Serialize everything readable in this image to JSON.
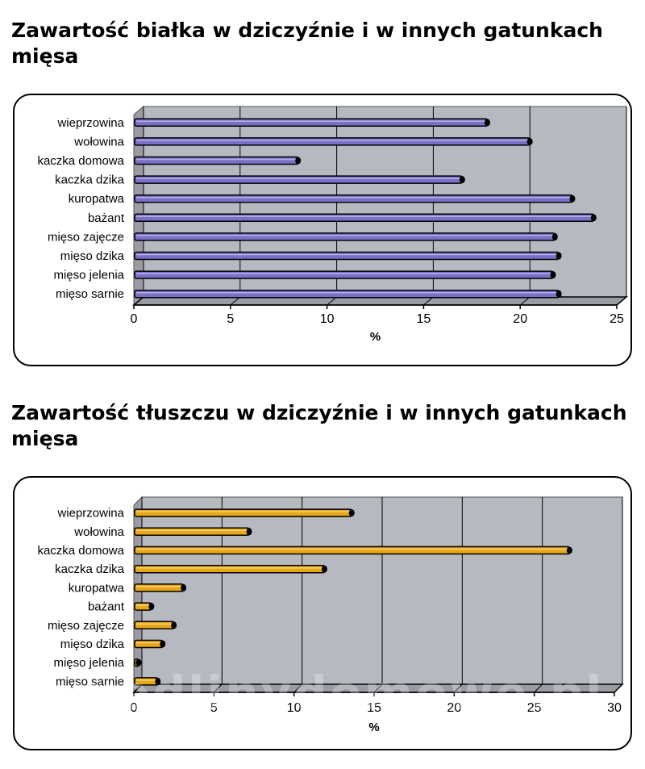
{
  "charts": [
    {
      "title": "Zawartość białka w dziczyźnie i w innych gatunkach mięsa"
    },
    {
      "title": "Zawartość tłuszczu w dziczyźnie i w innych gatunkach mięsa"
    }
  ],
  "watermark": "wedlinydomowe.pl",
  "colors": {
    "plot_background": "#b7b9c0",
    "grid": "#000000",
    "protein_bar": "#7b70c8",
    "fat_bar": "#e8a816"
  },
  "chart_data": [
    {
      "type": "bar",
      "orientation": "horizontal",
      "title": "Zawartość białka w dziczyźnie i w innych gatunkach mięsa",
      "categories": [
        "wieprzowina",
        "wołowina",
        "kaczka domowa",
        "kaczka dzika",
        "kuropatwa",
        "bażant",
        "mięso zajęcze",
        "mięso dzika",
        "mięso jelenia",
        "mięso sarnie"
      ],
      "values": [
        18.3,
        20.5,
        8.5,
        17.0,
        22.7,
        23.8,
        21.8,
        22.0,
        21.7,
        22.0
      ],
      "xlabel": "%",
      "ylabel": "",
      "xlim": [
        0,
        25
      ],
      "xticks": [
        0,
        5,
        10,
        15,
        20,
        25
      ],
      "grid": true
    },
    {
      "type": "bar",
      "orientation": "horizontal",
      "title": "Zawartość tłuszczu w dziczyźnie i w innych gatunkach mięsa",
      "categories": [
        "wieprzowina",
        "wołowina",
        "kaczka domowa",
        "kaczka dzika",
        "kuropatwa",
        "bażant",
        "mięso zajęcze",
        "mięso dzika",
        "mięso jelenia",
        "mięso sarnie"
      ],
      "values": [
        13.6,
        7.2,
        27.2,
        11.9,
        3.1,
        1.1,
        2.5,
        1.8,
        0.3,
        1.5
      ],
      "xlabel": "%",
      "ylabel": "",
      "xlim": [
        0,
        30
      ],
      "xticks": [
        0,
        5,
        10,
        15,
        20,
        25,
        30
      ],
      "grid": true
    }
  ]
}
